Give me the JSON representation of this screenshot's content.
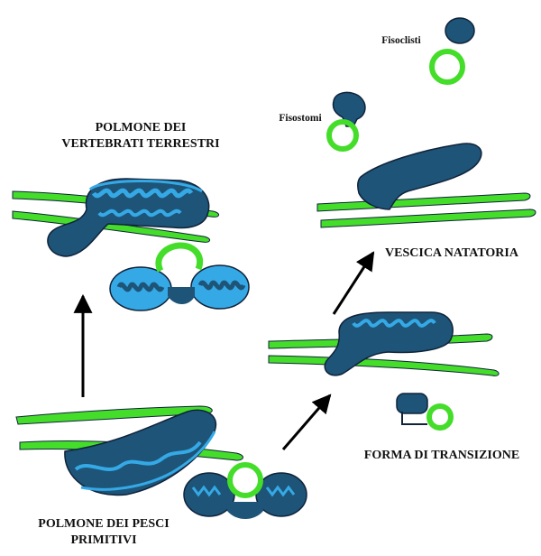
{
  "labels": {
    "terrestrial_lung_line1": "POLMONE DEI",
    "terrestrial_lung_line2": "VERTEBRATI TERRESTRI",
    "primitive_lung_line1": "POLMONE DEI PESCI",
    "primitive_lung_line2": "PRIMITIVI",
    "transition_form": "FORMA DI TRANSIZIONE",
    "swim_bladder": "VESCICA NATATORIA",
    "physostomes": "Fisostomi",
    "physoclists": "Fisoclisti"
  },
  "colors": {
    "dark_blue": "#1d5478",
    "light_blue": "#35a9e6",
    "green": "#44dd2a",
    "outline": "#10233a",
    "arrow": "#000000"
  }
}
